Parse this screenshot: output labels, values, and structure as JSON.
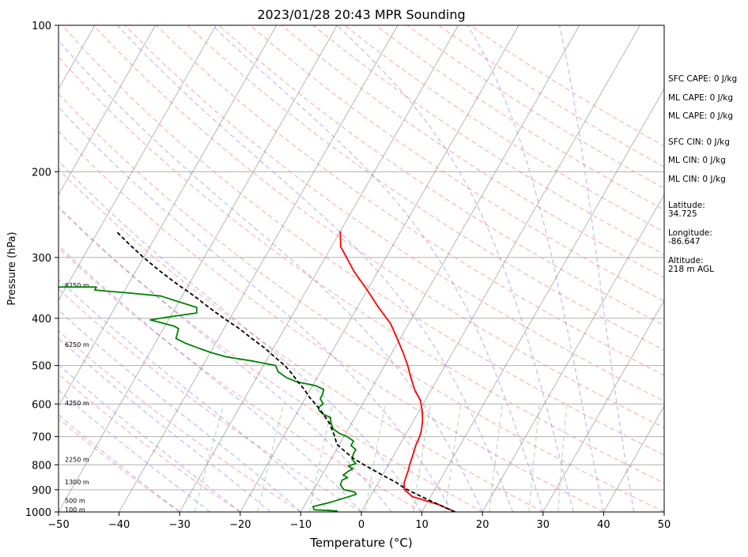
{
  "chart_data": {
    "type": "line",
    "title": "2023/01/28 20:43 MPR Sounding",
    "xlabel": "Temperature (°C)",
    "ylabel": "Pressure (hPa)",
    "xlim": [
      -50,
      50
    ],
    "ylim": [
      1000,
      100
    ],
    "y_scale": "log",
    "x_ticks": [
      "−50",
      "−40",
      "−30",
      "−20",
      "−10",
      "0",
      "10",
      "20",
      "30",
      "40",
      "50"
    ],
    "y_ticks": [
      "100",
      "200",
      "300",
      "400",
      "500",
      "600",
      "700",
      "800",
      "900",
      "1000"
    ],
    "grid": true,
    "skew": "skewed temperature lines",
    "series": [
      {
        "color": "#ff0000",
        "x_label": "temperature (°C)",
        "points": [
          [
            15.5,
            1000
          ],
          [
            12,
            965
          ],
          [
            7,
            930
          ],
          [
            5,
            900
          ],
          [
            4.3,
            870
          ],
          [
            4,
            840
          ],
          [
            3.8,
            820
          ],
          [
            3.5,
            800
          ],
          [
            3.2,
            770
          ],
          [
            2.7,
            730
          ],
          [
            2.5,
            700
          ],
          [
            2.2,
            680
          ],
          [
            1.5,
            650
          ],
          [
            0.5,
            620
          ],
          [
            -0.8,
            590
          ],
          [
            -2.8,
            560
          ],
          [
            -4.5,
            530
          ],
          [
            -6.2,
            500
          ],
          [
            -8.2,
            470
          ],
          [
            -10.5,
            440
          ],
          [
            -13,
            410
          ],
          [
            -16.5,
            380
          ],
          [
            -20,
            350
          ],
          [
            -24,
            320
          ],
          [
            -26.5,
            300
          ],
          [
            -28.5,
            285
          ],
          [
            -30,
            265
          ]
        ]
      },
      {
        "color": "#008000",
        "x_label": "dewpoint (°C)",
        "points": [
          [
            -4,
            995
          ],
          [
            -8,
            990
          ],
          [
            -8.5,
            975
          ],
          [
            -6,
            955
          ],
          [
            -2.5,
            920
          ],
          [
            -3,
            910
          ],
          [
            -5,
            900
          ],
          [
            -6,
            880
          ],
          [
            -6.2,
            860
          ],
          [
            -5.5,
            850
          ],
          [
            -6.5,
            840
          ],
          [
            -6,
            825
          ],
          [
            -5.5,
            815
          ],
          [
            -6.5,
            805
          ],
          [
            -5.5,
            795
          ],
          [
            -6.5,
            780
          ],
          [
            -6.8,
            760
          ],
          [
            -6.8,
            745
          ],
          [
            -8,
            730
          ],
          [
            -8,
            715
          ],
          [
            -9.5,
            700
          ],
          [
            -11,
            690
          ],
          [
            -12.5,
            675
          ],
          [
            -13.5,
            655
          ],
          [
            -14,
            640
          ],
          [
            -15.5,
            630
          ],
          [
            -16.5,
            620
          ],
          [
            -17,
            610
          ],
          [
            -16.5,
            600
          ],
          [
            -17.5,
            585
          ],
          [
            -17.5,
            575
          ],
          [
            -17.8,
            560
          ],
          [
            -19.5,
            550
          ],
          [
            -23,
            540
          ],
          [
            -25,
            530
          ],
          [
            -27,
            515
          ],
          [
            -28,
            500
          ],
          [
            -32,
            490
          ],
          [
            -37,
            480
          ],
          [
            -40,
            470
          ],
          [
            -42.5,
            460
          ],
          [
            -45,
            450
          ],
          [
            -47,
            440
          ],
          [
            -47.5,
            420
          ],
          [
            -48.5,
            415
          ],
          [
            -53,
            403
          ],
          [
            -50,
            397
          ],
          [
            -46,
            390
          ],
          [
            -46.5,
            380
          ],
          [
            -50,
            370
          ],
          [
            -53.5,
            360
          ],
          [
            -59,
            355
          ],
          [
            -65,
            350
          ],
          [
            -65,
            345
          ],
          [
            -73,
            345
          ]
        ]
      },
      {
        "color": "#000000",
        "line_style": "dashed",
        "x_label": "parcel (°C)",
        "points": [
          [
            15.5,
            1000
          ],
          [
            13.5,
            980
          ],
          [
            10.5,
            950
          ],
          [
            7.5,
            920
          ],
          [
            5,
            895
          ],
          [
            3,
            870
          ],
          [
            1,
            850
          ],
          [
            -1.5,
            825
          ],
          [
            -4,
            800
          ],
          [
            -6.5,
            775
          ],
          [
            -8.5,
            750
          ],
          [
            -10.5,
            725
          ],
          [
            -11.5,
            700
          ],
          [
            -12.5,
            680
          ],
          [
            -13.5,
            660
          ],
          [
            -14.8,
            640
          ],
          [
            -16.2,
            620
          ],
          [
            -17.8,
            600
          ],
          [
            -19.5,
            580
          ],
          [
            -21,
            560
          ],
          [
            -22.8,
            540
          ],
          [
            -24.5,
            520
          ],
          [
            -26.5,
            500
          ],
          [
            -29,
            480
          ],
          [
            -31.5,
            460
          ],
          [
            -34.5,
            440
          ],
          [
            -37.5,
            420
          ],
          [
            -41,
            400
          ],
          [
            -44.5,
            380
          ],
          [
            -48,
            360
          ],
          [
            -52,
            340
          ],
          [
            -56,
            320
          ],
          [
            -60,
            300
          ],
          [
            -64,
            280
          ],
          [
            -67,
            265
          ]
        ]
      }
    ],
    "height_labels": [
      {
        "text": "100 m",
        "p": 988
      },
      {
        "text": "500 m",
        "p": 948
      },
      {
        "text": "1300 m",
        "p": 868
      },
      {
        "text": "2250 m",
        "p": 780
      },
      {
        "text": "4250 m",
        "p": 597
      },
      {
        "text": "6250 m",
        "p": 453
      },
      {
        "text": "8250 m",
        "p": 342
      }
    ],
    "reference_lines": {
      "dry_adiabat_color": "#ff0000",
      "moist_adiabat_color": "#0000ff",
      "mixing_ratio_color": "#008000",
      "isotherm_color": "#808080"
    }
  },
  "stats": {
    "sfc_cape": "SFC CAPE: 0 J/kg",
    "ml_cape": "ML CAPE: 0 J/kg",
    "ml_cape_2": "ML CAPE: 0 J/kg",
    "sfc_cin": "SFC CIN: 0 J/kg",
    "ml_cin": "ML CIN: 0 J/kg",
    "ml_cin_2": "ML CIN: 0 J/kg",
    "latitude_label": "Latitude:",
    "latitude_value": "34.725",
    "longitude_label": "Longitude:",
    "longitude_value": "-86.647",
    "altitude_label": "Altitude:",
    "altitude_value": "218 m AGL"
  }
}
